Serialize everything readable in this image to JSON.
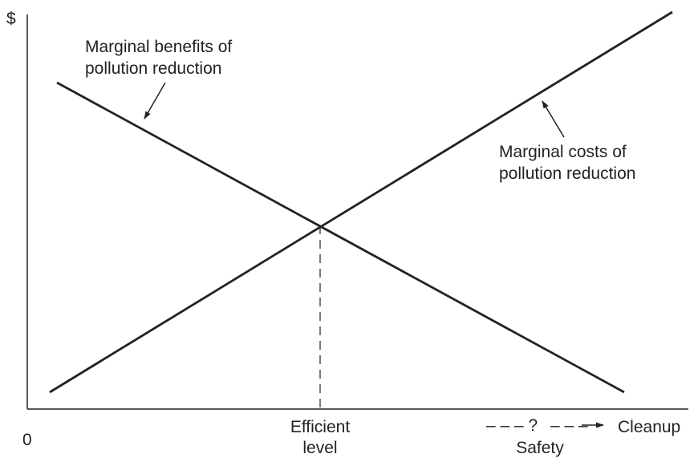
{
  "axes": {
    "y_symbol": "$",
    "x_origin": "0",
    "x_label": "Cleanup"
  },
  "curves": {
    "benefits_label": [
      "Marginal benefits of",
      "pollution reduction"
    ],
    "costs_label": [
      "Marginal costs of",
      "pollution reduction"
    ]
  },
  "efficient_level": {
    "label": [
      "Efficient",
      "level"
    ]
  },
  "safety": {
    "dashes_left": "– – – ?",
    "dashes_right": "– – –",
    "label": "Safety"
  },
  "colors": {
    "ink": "#222222",
    "background": "#ffffff"
  }
}
